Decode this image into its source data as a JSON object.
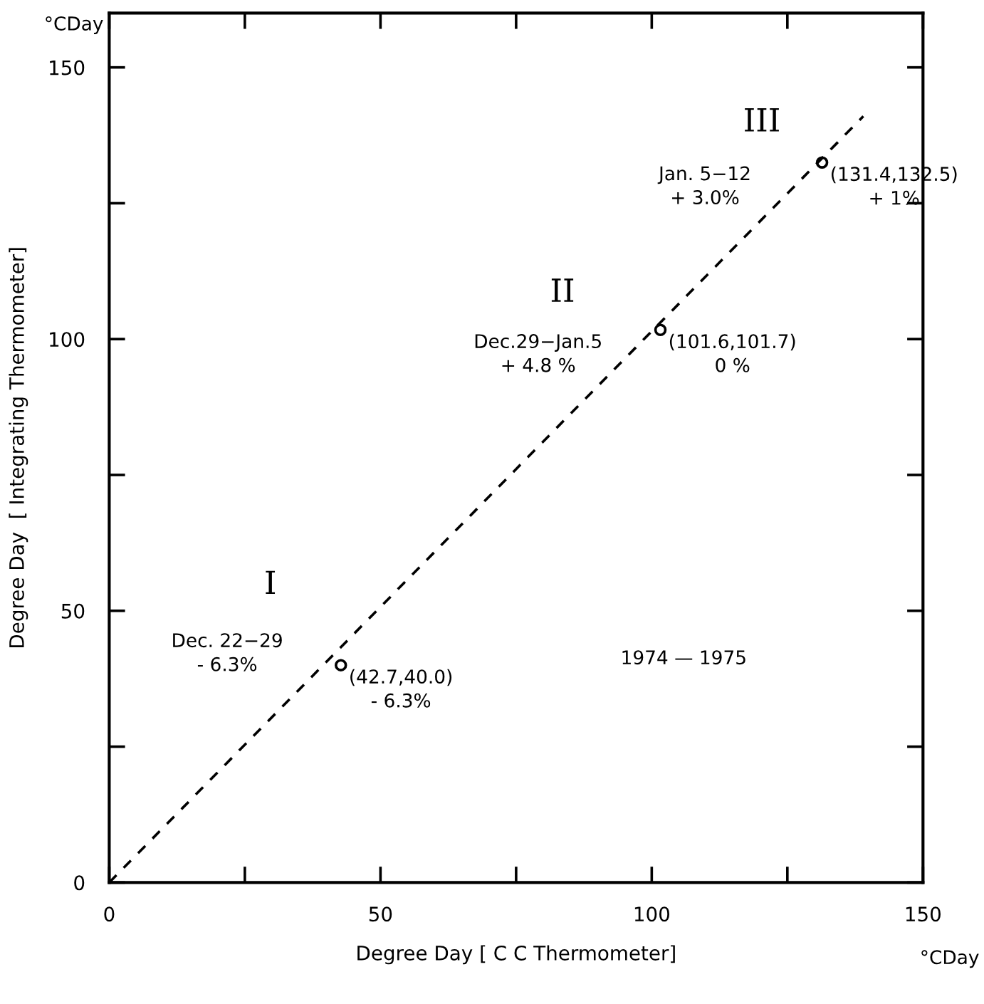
{
  "chart_data": {
    "type": "scatter",
    "xlabel": "Degree Day [ C C Thermometer]",
    "ylabel": "Degree Day  [ Integrating Thermometer]",
    "xlim": [
      0,
      150
    ],
    "ylim": [
      0,
      160
    ],
    "xticks": [
      0,
      {
        "value": 25,
        "label": null
      },
      50,
      {
        "value": 75,
        "label": null
      },
      100,
      {
        "value": 125,
        "label": null
      },
      150
    ],
    "yticks": [
      0,
      {
        "value": 25,
        "label": null
      },
      50,
      {
        "value": 75,
        "label": null
      },
      100,
      {
        "value": 125,
        "label": null
      },
      150
    ],
    "grid": false,
    "series": [
      {
        "type": "line",
        "color": "#000000",
        "x": [
          0,
          139
        ],
        "values": [
          0,
          141
        ],
        "line_style": "dashed",
        "marker": "none"
      },
      {
        "color": "#000000",
        "x": [
          42.7,
          101.6,
          131.4
        ],
        "values": [
          40.0,
          101.7,
          132.5
        ],
        "marker": "circle"
      }
    ],
    "annotations": [
      {
        "text": "(42.7,40.0)\n- 6.3%",
        "x": 42.7,
        "y": 40.0
      },
      {
        "text": "(101.6,101.7)\n0 %",
        "x": 101.6,
        "y": 101.7
      },
      {
        "text": "(131.4,132.5)\n+ 1%",
        "x": 131.4,
        "y": 132.5
      },
      "I",
      "Dec. 22−29\n- 6.3%",
      "II",
      "Dec.29−Jan.5\n+ 4.8 %",
      "III",
      "Jan. 5−12\n+ 3.0%",
      "1974 — 1975",
      "°CDay",
      "°CDay"
    ]
  }
}
